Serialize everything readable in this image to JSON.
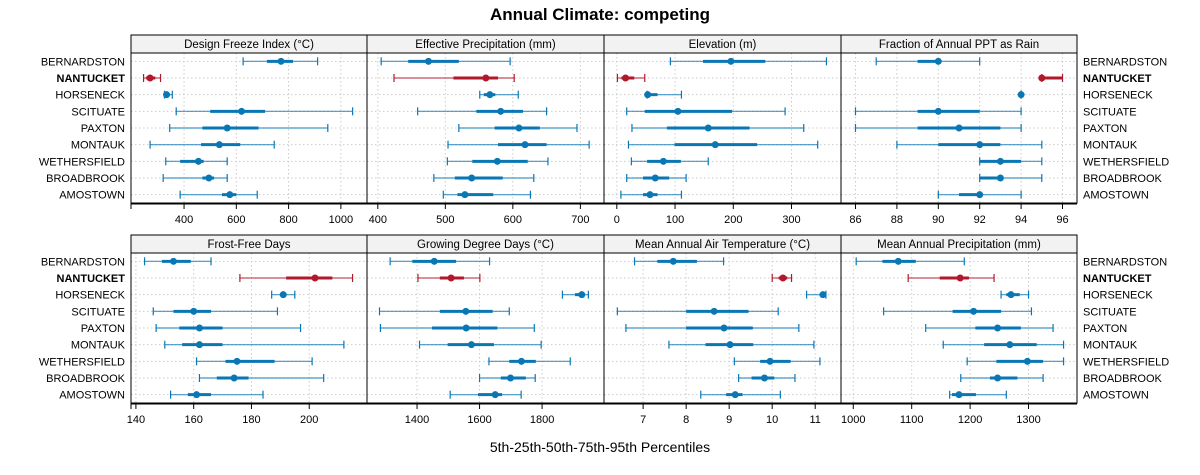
{
  "title": "Annual Climate: competing",
  "chart_data": {
    "type": "dotplot-percentile-intervals",
    "title": "Annual Climate: competing",
    "xlabel": "5th-25th-50th-75th-95th Percentiles",
    "highlight_site": "NANTUCKET",
    "colors": {
      "default": "#0a77b5",
      "highlight": "#b2182b",
      "strip_bg": "#f2f2f2",
      "grid": "#cccccc"
    },
    "sites": [
      "BERNARDSTON",
      "NANTUCKET",
      "HORSENECK",
      "SCITUATE",
      "PAXTON",
      "MONTAUK",
      "WETHERSFIELD",
      "BROADBROOK",
      "AMOSTOWN"
    ],
    "stat_order": [
      "p5",
      "p25",
      "p50",
      "p75",
      "p95"
    ],
    "panels": [
      {
        "name": "Design Freeze Index (°C)",
        "xlim": [
          197,
          1100
        ],
        "ticks": [
          400,
          600,
          800,
          1000
        ],
        "data": {
          "BERNARDSTON": [
            626,
            717,
            771,
            817,
            911
          ],
          "NANTUCKET": [
            245,
            255,
            270,
            290,
            310
          ],
          "HORSENECK": [
            325,
            328,
            333,
            345,
            355
          ],
          "SCITUATE": [
            370,
            500,
            620,
            710,
            1045
          ],
          "PAXTON": [
            345,
            470,
            565,
            685,
            950
          ],
          "MONTAUK": [
            270,
            465,
            535,
            615,
            745
          ],
          "WETHERSFIELD": [
            330,
            385,
            455,
            475,
            565
          ],
          "BROADBROOK": [
            320,
            470,
            495,
            515,
            565
          ],
          "AMOSTOWN": [
            385,
            545,
            575,
            600,
            680
          ]
        }
      },
      {
        "name": "Effective Precipitation (mm)",
        "xlim": [
          384,
          735
        ],
        "ticks": [
          400,
          500,
          600,
          700
        ],
        "data": {
          "BERNARDSTON": [
            405,
            445,
            475,
            520,
            596
          ],
          "NANTUCKET": [
            424,
            512,
            560,
            578,
            602
          ],
          "HORSENECK": [
            551,
            557,
            566,
            574,
            608
          ],
          "SCITUATE": [
            459,
            546,
            582,
            615,
            650
          ],
          "PAXTON": [
            520,
            573,
            609,
            640,
            695
          ],
          "MONTAUK": [
            504,
            578,
            618,
            650,
            713
          ],
          "WETHERSFIELD": [
            503,
            540,
            577,
            622,
            652
          ],
          "BROADBROOK": [
            483,
            514,
            539,
            585,
            631
          ],
          "AMOSTOWN": [
            497,
            518,
            529,
            571,
            626
          ]
        }
      },
      {
        "name": "Elevation (m)",
        "xlim": [
          -22,
          385
        ],
        "ticks": [
          0,
          100,
          200,
          300
        ],
        "data": {
          "BERNARDSTON": [
            92,
            148,
            196,
            255,
            360
          ],
          "NANTUCKET": [
            1,
            8,
            15,
            30,
            48
          ],
          "HORSENECK": [
            52,
            53,
            53,
            70,
            111
          ],
          "SCITUATE": [
            17,
            48,
            105,
            198,
            289
          ],
          "PAXTON": [
            26,
            86,
            157,
            228,
            321
          ],
          "MONTAUK": [
            20,
            99,
            169,
            241,
            345
          ],
          "WETHERSFIELD": [
            25,
            52,
            80,
            110,
            157
          ],
          "BROADBROOK": [
            17,
            45,
            66,
            90,
            119
          ],
          "AMOSTOWN": [
            7,
            45,
            57,
            70,
            111
          ]
        }
      },
      {
        "name": "Fraction of Annual PPT as Rain",
        "xlim": [
          85.3,
          96.7
        ],
        "ticks": [
          86,
          88,
          90,
          92,
          94,
          96
        ],
        "data": {
          "BERNARDSTON": [
            87,
            89,
            90,
            90,
            92
          ],
          "NANTUCKET": [
            95,
            95,
            95,
            96,
            96
          ],
          "HORSENECK": [
            94,
            94,
            94,
            94,
            94
          ],
          "SCITUATE": [
            86,
            89,
            90,
            92,
            94
          ],
          "PAXTON": [
            86,
            89,
            91,
            93,
            94
          ],
          "MONTAUK": [
            88,
            90,
            92,
            93,
            95
          ],
          "WETHERSFIELD": [
            92,
            92,
            93,
            94,
            95
          ],
          "BROADBROOK": [
            92,
            92,
            93,
            93,
            95
          ],
          "AMOSTOWN": [
            90,
            91,
            92,
            92,
            94
          ]
        }
      },
      {
        "name": "Frost-Free Days",
        "xlim": [
          138.3,
          220
        ],
        "ticks": [
          140,
          160,
          180,
          200
        ],
        "data": {
          "BERNARDSTON": [
            143,
            149,
            153,
            159,
            166
          ],
          "NANTUCKET": [
            176,
            192,
            202,
            208,
            215
          ],
          "HORSENECK": [
            187,
            190,
            191,
            192,
            195
          ],
          "SCITUATE": [
            146,
            153,
            160,
            166,
            189
          ],
          "PAXTON": [
            147,
            155,
            162,
            170,
            197
          ],
          "MONTAUK": [
            150,
            156,
            162,
            170,
            212
          ],
          "WETHERSFIELD": [
            161,
            171,
            175,
            188,
            201
          ],
          "BROADBROOK": [
            162,
            168,
            174,
            179,
            205
          ],
          "AMOSTOWN": [
            152,
            158,
            161,
            166,
            184
          ]
        }
      },
      {
        "name": "Growing Degree Days (°C)",
        "xlim": [
          1240,
          1998
        ],
        "ticks": [
          1400,
          1600,
          1800
        ],
        "data": {
          "BERNARDSTON": [
            1314,
            1385,
            1455,
            1525,
            1632
          ],
          "NANTUCKET": [
            1403,
            1473,
            1509,
            1550,
            1601
          ],
          "HORSENECK": [
            1865,
            1905,
            1927,
            1935,
            1948
          ],
          "SCITUATE": [
            1280,
            1473,
            1556,
            1642,
            1695
          ],
          "PAXTON": [
            1283,
            1448,
            1557,
            1657,
            1775
          ],
          "MONTAUK": [
            1408,
            1498,
            1574,
            1646,
            1797
          ],
          "WETHERSFIELD": [
            1630,
            1695,
            1734,
            1780,
            1890
          ],
          "BROADBROOK": [
            1600,
            1668,
            1699,
            1748,
            1778
          ],
          "AMOSTOWN": [
            1506,
            1595,
            1650,
            1672,
            1733
          ]
        }
      },
      {
        "name": "Mean Annual Air Temperature (°C)",
        "xlim": [
          6.09,
          11.6
        ],
        "ticks": [
          7,
          8,
          9,
          10,
          11
        ],
        "data": {
          "BERNARDSTON": [
            6.8,
            7.33,
            7.7,
            8.25,
            8.87
          ],
          "NANTUCKET": [
            10.0,
            10.15,
            10.25,
            10.35,
            10.45
          ],
          "HORSENECK": [
            10.8,
            11.1,
            11.18,
            11.22,
            11.25
          ],
          "SCITUATE": [
            6.4,
            8.0,
            8.65,
            9.45,
            10.14
          ],
          "PAXTON": [
            6.6,
            8.0,
            8.88,
            9.55,
            10.62
          ],
          "MONTAUK": [
            7.6,
            8.45,
            9.02,
            9.56,
            10.97
          ],
          "WETHERSFIELD": [
            9.12,
            9.72,
            9.95,
            10.43,
            11.11
          ],
          "BROADBROOK": [
            9.22,
            9.52,
            9.82,
            10.05,
            10.53
          ],
          "AMOSTOWN": [
            8.34,
            8.93,
            9.14,
            9.31,
            10.19
          ]
        }
      },
      {
        "name": "Mean Annual Precipitation (mm)",
        "xlim": [
          979,
          1383
        ],
        "ticks": [
          1000,
          1100,
          1200,
          1300
        ],
        "data": {
          "BERNARDSTON": [
            1005,
            1050,
            1077,
            1107,
            1190
          ],
          "NANTUCKET": [
            1094,
            1148,
            1183,
            1198,
            1241
          ],
          "HORSENECK": [
            1253,
            1262,
            1270,
            1285,
            1300
          ],
          "SCITUATE": [
            1052,
            1170,
            1206,
            1253,
            1305
          ],
          "PAXTON": [
            1124,
            1209,
            1247,
            1287,
            1342
          ],
          "MONTAUK": [
            1154,
            1224,
            1268,
            1314,
            1360
          ],
          "WETHERSFIELD": [
            1195,
            1245,
            1298,
            1325,
            1360
          ],
          "BROADBROOK": [
            1184,
            1234,
            1247,
            1281,
            1325
          ],
          "AMOSTOWN": [
            1165,
            1169,
            1181,
            1210,
            1262
          ]
        }
      }
    ]
  }
}
